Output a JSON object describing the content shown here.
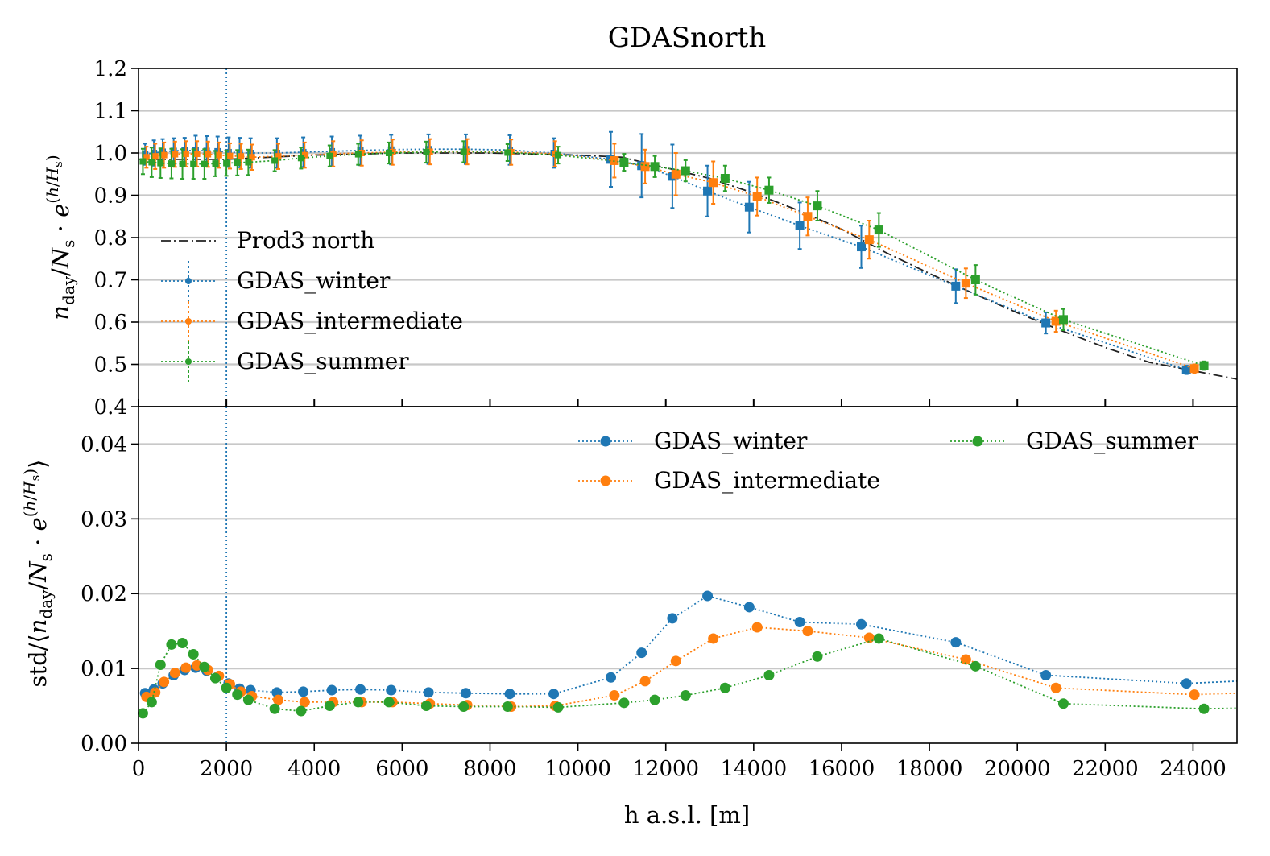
{
  "chart_data": [
    {
      "type": "line",
      "title": "GDASnorth",
      "ylabel": "n_day/N_s · e^(h/H_s)",
      "xlabel": "",
      "xlim": [
        0,
        25000
      ],
      "ylim": [
        0.4,
        1.2
      ],
      "y_ticks": [
        "0.4",
        "0.5",
        "0.6",
        "0.7",
        "0.8",
        "0.9",
        "1.0",
        "1.1",
        "1.2"
      ],
      "grid": "horizontal",
      "legend_position": "center-left",
      "reference_line_x": 2000,
      "model": {
        "name": "Prod3 north",
        "x": [
          0,
          2000,
          4000,
          6000,
          8000,
          10000,
          11000,
          12000,
          13000,
          14000,
          15000,
          16000,
          17000,
          18000,
          19000,
          20000,
          21000,
          22000,
          23000,
          24000,
          25000
        ],
        "y": [
          0.985,
          0.985,
          0.995,
          1.0,
          1.0,
          0.995,
          0.99,
          0.965,
          0.94,
          0.905,
          0.865,
          0.82,
          0.765,
          0.715,
          0.668,
          0.622,
          0.58,
          0.54,
          0.505,
          0.485,
          0.465
        ]
      },
      "series": [
        {
          "name": "GDAS_winter",
          "x": [
            150,
            350,
            550,
            800,
            1050,
            1300,
            1550,
            1800,
            2050,
            2300,
            2550,
            3150,
            3750,
            4400,
            5050,
            5750,
            6600,
            7450,
            8450,
            9450,
            10750,
            11450,
            12150,
            12950,
            13900,
            15050,
            16450,
            18600,
            20650,
            23850
          ],
          "y": [
            0.997,
            1.0,
            1.003,
            1.005,
            1.006,
            1.006,
            1.005,
            1.004,
            1.002,
            1.001,
            1.0,
            1.0,
            1.002,
            1.004,
            1.006,
            1.008,
            1.009,
            1.009,
            1.007,
            1.0,
            0.985,
            0.97,
            0.945,
            0.91,
            0.872,
            0.828,
            0.778,
            0.685,
            0.598,
            0.487
          ],
          "err": [
            0.025,
            0.03,
            0.03,
            0.03,
            0.03,
            0.035,
            0.035,
            0.035,
            0.035,
            0.035,
            0.035,
            0.035,
            0.035,
            0.035,
            0.035,
            0.035,
            0.035,
            0.035,
            0.035,
            0.035,
            0.065,
            0.075,
            0.075,
            0.06,
            0.06,
            0.055,
            0.05,
            0.04,
            0.025,
            0.01
          ]
        },
        {
          "name": "GDAS_intermediate",
          "x": [
            180,
            380,
            580,
            830,
            1080,
            1330,
            1580,
            1830,
            2080,
            2330,
            2580,
            3180,
            3780,
            4430,
            5080,
            5780,
            6630,
            7480,
            8480,
            9480,
            10830,
            11530,
            12230,
            13080,
            14080,
            15230,
            16630,
            18830,
            20880,
            24030
          ],
          "y": [
            0.99,
            0.992,
            0.995,
            0.997,
            0.998,
            0.998,
            0.997,
            0.995,
            0.993,
            0.992,
            0.99,
            0.992,
            0.995,
            0.998,
            1.0,
            1.002,
            1.003,
            1.003,
            1.002,
            0.998,
            0.982,
            0.968,
            0.95,
            0.93,
            0.897,
            0.85,
            0.795,
            0.692,
            0.602,
            0.49
          ],
          "err": [
            0.025,
            0.03,
            0.03,
            0.03,
            0.03,
            0.03,
            0.03,
            0.03,
            0.03,
            0.03,
            0.03,
            0.03,
            0.03,
            0.03,
            0.03,
            0.03,
            0.03,
            0.03,
            0.03,
            0.03,
            0.04,
            0.04,
            0.05,
            0.05,
            0.045,
            0.045,
            0.045,
            0.035,
            0.025,
            0.01
          ]
        },
        {
          "name": "GDAS_summer",
          "x": [
            100,
            300,
            500,
            750,
            1000,
            1250,
            1500,
            1750,
            2000,
            2250,
            2500,
            3100,
            3700,
            4350,
            5000,
            5700,
            6550,
            7400,
            8400,
            9550,
            11050,
            11750,
            12450,
            13350,
            14350,
            15450,
            16850,
            19050,
            21050,
            24250
          ],
          "y": [
            0.98,
            0.978,
            0.976,
            0.975,
            0.974,
            0.974,
            0.974,
            0.975,
            0.976,
            0.977,
            0.978,
            0.982,
            0.988,
            0.993,
            0.997,
            1.0,
            1.002,
            1.003,
            1.001,
            0.995,
            0.978,
            0.968,
            0.958,
            0.94,
            0.912,
            0.875,
            0.818,
            0.7,
            0.606,
            0.497
          ],
          "err": [
            0.03,
            0.035,
            0.035,
            0.035,
            0.035,
            0.035,
            0.035,
            0.03,
            0.03,
            0.03,
            0.03,
            0.025,
            0.025,
            0.025,
            0.025,
            0.025,
            0.025,
            0.025,
            0.02,
            0.02,
            0.02,
            0.025,
            0.025,
            0.03,
            0.03,
            0.035,
            0.04,
            0.035,
            0.025,
            0.01
          ]
        }
      ]
    },
    {
      "type": "line",
      "title": "",
      "xlabel": "h a.s.l. [m]",
      "ylabel": "std/⟨n_day/N_s · e^(h/H_s)⟩",
      "xlim": [
        0,
        25000
      ],
      "ylim": [
        0.0,
        0.045
      ],
      "x_ticks": [
        "0",
        "2000",
        "4000",
        "6000",
        "8000",
        "10000",
        "12000",
        "14000",
        "16000",
        "18000",
        "20000",
        "22000",
        "24000"
      ],
      "y_ticks": [
        "0.00",
        "0.01",
        "0.02",
        "0.03",
        "0.04"
      ],
      "grid": "horizontal",
      "legend_position": "top-right",
      "reference_line_x": 2000,
      "series": [
        {
          "name": "GDAS_winter",
          "x": [
            150,
            350,
            550,
            800,
            1050,
            1300,
            1550,
            1800,
            2050,
            2300,
            2550,
            3150,
            3750,
            4400,
            5050,
            5750,
            6600,
            7450,
            8450,
            9450,
            10750,
            11450,
            12150,
            12950,
            13900,
            15050,
            16450,
            18600,
            20650,
            23850
          ],
          "y": [
            0.0067,
            0.0072,
            0.008,
            0.0091,
            0.0098,
            0.0101,
            0.0097,
            0.0089,
            0.008,
            0.0073,
            0.0071,
            0.0068,
            0.0069,
            0.0071,
            0.0072,
            0.0071,
            0.0068,
            0.0067,
            0.0066,
            0.0066,
            0.0088,
            0.0121,
            0.0167,
            0.0197,
            0.0182,
            0.0162,
            0.0159,
            0.0135,
            0.0091,
            0.008
          ],
          "tail": [
            25000,
            0.0083
          ]
        },
        {
          "name": "GDAS_intermediate",
          "x": [
            180,
            380,
            580,
            830,
            1080,
            1330,
            1580,
            1830,
            2080,
            2330,
            2580,
            3180,
            3780,
            4430,
            5080,
            5780,
            6630,
            7480,
            8480,
            9480,
            10830,
            11530,
            12230,
            13080,
            14080,
            15230,
            16630,
            18830,
            20880,
            24030
          ],
          "y": [
            0.0062,
            0.0068,
            0.0082,
            0.0094,
            0.0101,
            0.0104,
            0.0098,
            0.009,
            0.0079,
            0.0069,
            0.0063,
            0.0058,
            0.0055,
            0.0055,
            0.0055,
            0.0055,
            0.0053,
            0.0051,
            0.0049,
            0.005,
            0.0064,
            0.0083,
            0.011,
            0.014,
            0.0155,
            0.015,
            0.0141,
            0.0112,
            0.0074,
            0.0065
          ],
          "tail": [
            25000,
            0.0067
          ]
        },
        {
          "name": "GDAS_summer",
          "x": [
            100,
            300,
            500,
            750,
            1000,
            1250,
            1500,
            1750,
            2000,
            2250,
            2500,
            3100,
            3700,
            4350,
            5000,
            5700,
            6550,
            7400,
            8400,
            9550,
            11050,
            11750,
            12450,
            13350,
            14350,
            15450,
            16850,
            19050,
            21050,
            24250
          ],
          "y": [
            0.004,
            0.0055,
            0.0105,
            0.0132,
            0.0134,
            0.0119,
            0.0102,
            0.0087,
            0.0074,
            0.0065,
            0.0058,
            0.0046,
            0.0043,
            0.005,
            0.0055,
            0.0055,
            0.005,
            0.0049,
            0.0049,
            0.0048,
            0.0054,
            0.0058,
            0.0064,
            0.0074,
            0.0091,
            0.0116,
            0.014,
            0.0103,
            0.0053,
            0.0046
          ],
          "tail": [
            25000,
            0.0047
          ]
        }
      ]
    }
  ],
  "colors": {
    "winter": "#1f77b4",
    "intermediate": "#ff7f0e",
    "summer": "#2ca02c",
    "model": "#222222"
  }
}
